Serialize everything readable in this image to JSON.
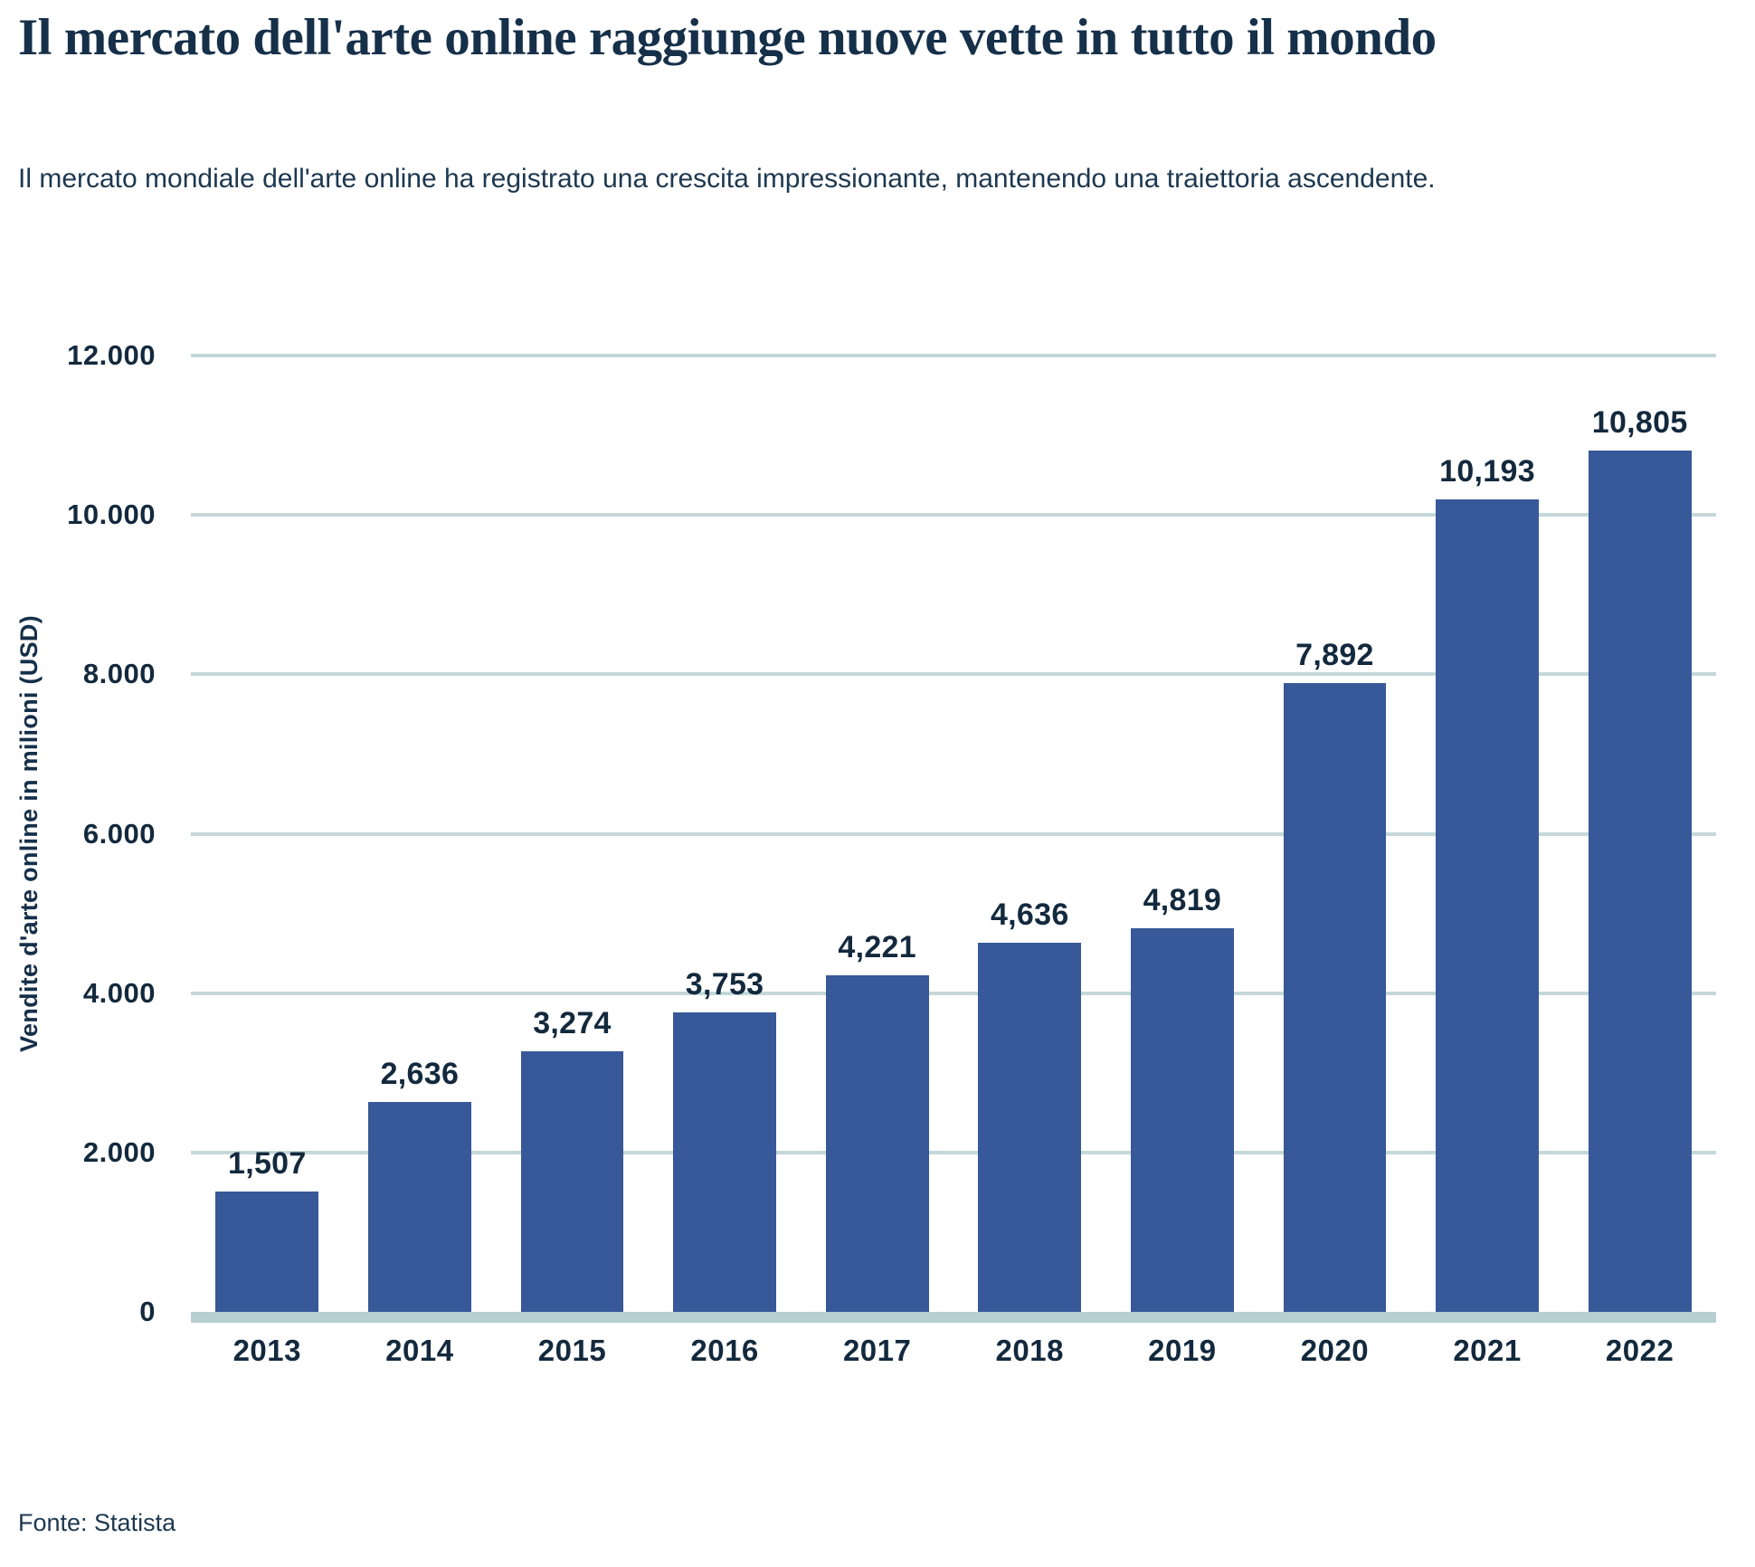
{
  "header": {
    "title": "Il mercato dell'arte online raggiunge nuove vette in tutto il mondo",
    "subtitle": "Il mercato mondiale dell'arte online ha registrato una crescita impressionante, mantenendo una traiettoria ascendente."
  },
  "footer": {
    "source": "Fonte: Statista"
  },
  "chart_data": {
    "type": "bar",
    "title": "Il mercato dell'arte online raggiunge nuove vette in tutto il mondo",
    "xlabel": "",
    "ylabel": "Vendite d'arte online in milioni (USD)",
    "categories": [
      "2013",
      "2014",
      "2015",
      "2016",
      "2017",
      "2018",
      "2019",
      "2020",
      "2021",
      "2022"
    ],
    "values": [
      1507,
      2636,
      3274,
      3753,
      4221,
      4636,
      4819,
      7892,
      10193,
      10805
    ],
    "value_labels": [
      "1,507",
      "2,636",
      "3,274",
      "3,753",
      "4,221",
      "4,636",
      "4,819",
      "7,892",
      "10,193",
      "10,805"
    ],
    "ylim": [
      0,
      12000
    ],
    "yticks": [
      {
        "value": 0,
        "label": "0"
      },
      {
        "value": 2000,
        "label": "2.000"
      },
      {
        "value": 4000,
        "label": "4.000"
      },
      {
        "value": 6000,
        "label": "6.000"
      },
      {
        "value": 8000,
        "label": "8.000"
      },
      {
        "value": 10000,
        "label": "10.000"
      },
      {
        "value": 12000,
        "label": "12.000"
      }
    ],
    "grid": "horizontal",
    "legend": "none",
    "colors": {
      "bar": "#375899",
      "gridline": "#c5d8d9",
      "baseline": "#b8cfd1",
      "text": "#13293d",
      "title": "#16304a",
      "subtitle": "#1d3850",
      "background": "#ffffff"
    }
  }
}
